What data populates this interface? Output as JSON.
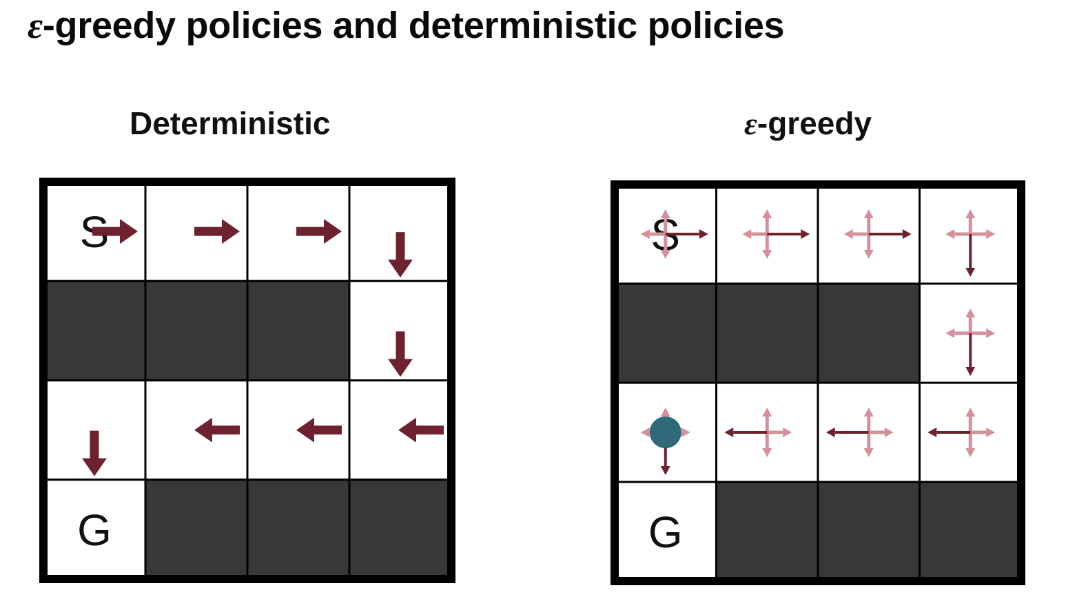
{
  "title": {
    "epsilon": "ε",
    "text": "-greedy policies and deterministic policies"
  },
  "panels": [
    {
      "id": "deterministic",
      "heading_epsilon": "",
      "heading": "Deterministic"
    },
    {
      "id": "epsilon_greedy",
      "heading_epsilon": "ε",
      "heading": "-greedy"
    }
  ],
  "grid": {
    "rows": 4,
    "cols": 4,
    "blocked": [
      [
        1,
        0
      ],
      [
        1,
        1
      ],
      [
        1,
        2
      ],
      [
        3,
        1
      ],
      [
        3,
        2
      ],
      [
        3,
        3
      ]
    ],
    "start": {
      "row": 0,
      "col": 0,
      "label": "S"
    },
    "goal": {
      "row": 3,
      "col": 0,
      "label": "G"
    }
  },
  "deterministic_policy": [
    {
      "row": 0,
      "col": 0,
      "action": "right"
    },
    {
      "row": 0,
      "col": 1,
      "action": "right"
    },
    {
      "row": 0,
      "col": 2,
      "action": "right"
    },
    {
      "row": 0,
      "col": 3,
      "action": "down"
    },
    {
      "row": 1,
      "col": 3,
      "action": "down"
    },
    {
      "row": 2,
      "col": 3,
      "action": "left"
    },
    {
      "row": 2,
      "col": 2,
      "action": "left"
    },
    {
      "row": 2,
      "col": 1,
      "action": "left"
    },
    {
      "row": 2,
      "col": 0,
      "action": "down"
    }
  ],
  "agent": {
    "row": 2,
    "col": 0
  },
  "colors": {
    "arrow": "#6e2230",
    "arrow_light": "#d3919b",
    "blocked": "#383838",
    "border": "#000000",
    "agent": "#2e6a78"
  }
}
